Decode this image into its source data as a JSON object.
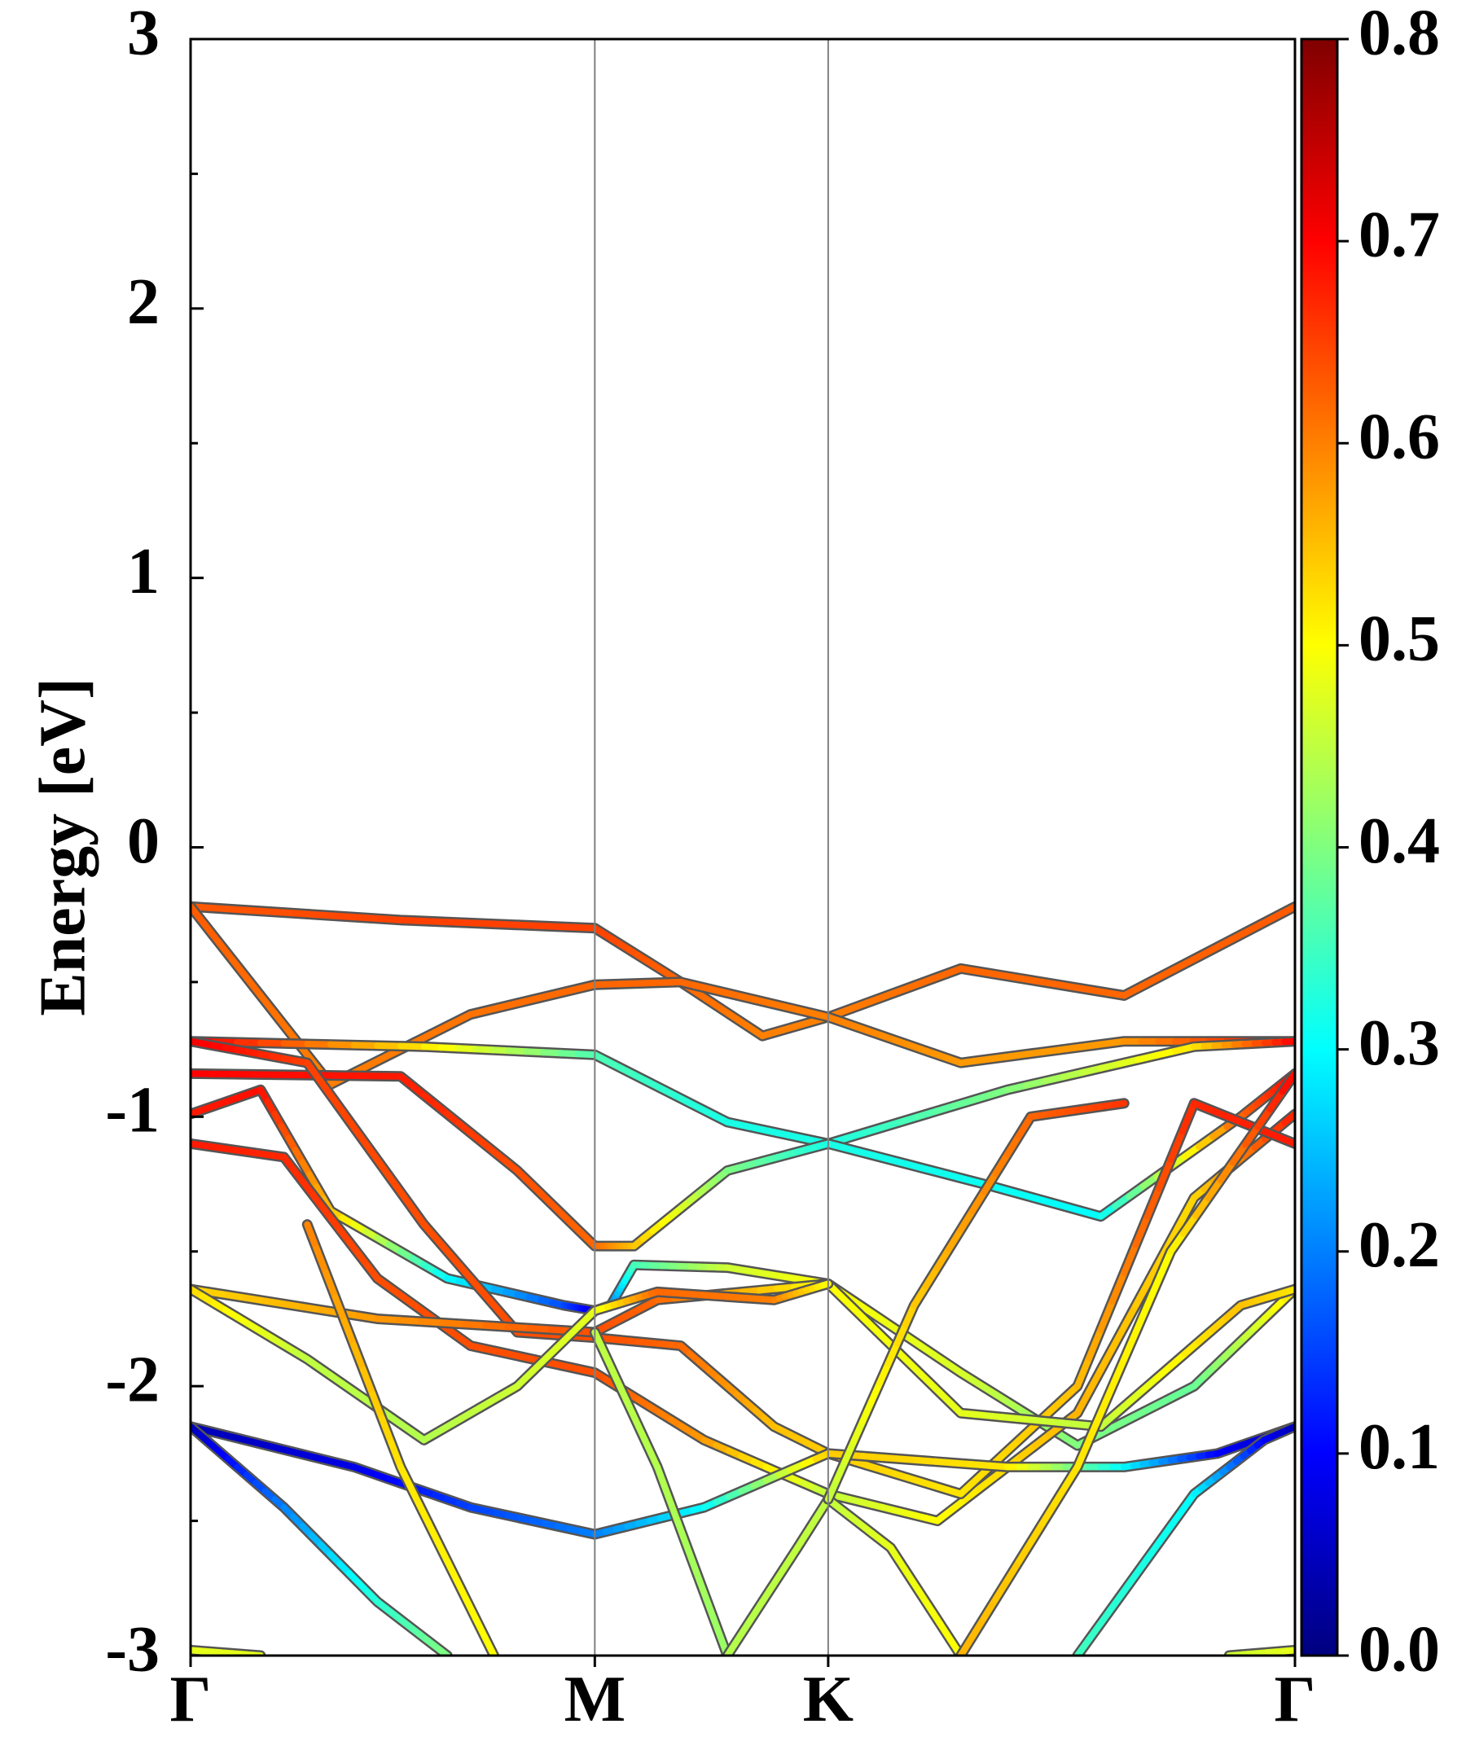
{
  "chart_data": {
    "type": "line",
    "title": "",
    "ylabel": "Energy [eV]",
    "xlabel": "",
    "ylim": [
      -3,
      3
    ],
    "yticks": [
      "3",
      "2",
      "1",
      "0",
      "-1",
      "-2",
      "-3"
    ],
    "ytick_values": [
      3,
      2,
      1,
      0,
      -1,
      -2,
      -3
    ],
    "kpath_labels": [
      "Γ",
      "M",
      "K",
      "Γ"
    ],
    "kpath_positions": [
      0,
      1.732,
      2.732,
      4.732
    ],
    "colorbar": {
      "colormap": "jet",
      "range": [
        0.0,
        0.8
      ],
      "tick_labels": [
        "0.8",
        "0.7",
        "0.6",
        "0.5",
        "0.4",
        "0.3",
        "0.2",
        "0.1",
        "0.0"
      ]
    },
    "grid": false,
    "series": [
      {
        "points": [
          [
            0,
            -0.22,
            0.63
          ],
          [
            0.9,
            -0.27,
            0.65
          ],
          [
            1.732,
            -0.3,
            0.65
          ],
          [
            2.1,
            -0.5,
            0.62
          ],
          [
            2.45,
            -0.7,
            0.6
          ],
          [
            2.732,
            -0.63,
            0.6
          ],
          [
            3.3,
            -0.45,
            0.62
          ],
          [
            4.0,
            -0.55,
            0.62
          ],
          [
            4.732,
            -0.22,
            0.63
          ]
        ]
      },
      {
        "points": [
          [
            0,
            -0.22,
            0.63
          ],
          [
            0.6,
            -0.88,
            0.6
          ],
          [
            1.2,
            -0.62,
            0.61
          ],
          [
            1.732,
            -0.51,
            0.62
          ],
          [
            2.1,
            -0.5,
            0.62
          ],
          [
            2.732,
            -0.63,
            0.6
          ],
          [
            3.3,
            -0.8,
            0.58
          ],
          [
            4.0,
            -0.72,
            0.58
          ],
          [
            4.732,
            -0.72,
            0.7
          ]
        ]
      },
      {
        "points": [
          [
            0,
            -0.72,
            0.71
          ],
          [
            1.0,
            -0.74,
            0.52
          ],
          [
            1.732,
            -0.77,
            0.36
          ],
          [
            2.3,
            -1.02,
            0.32
          ],
          [
            2.732,
            -1.1,
            0.32
          ],
          [
            3.5,
            -0.9,
            0.4
          ],
          [
            4.3,
            -0.74,
            0.52
          ],
          [
            4.732,
            -0.72,
            0.7
          ]
        ]
      },
      {
        "points": [
          [
            0,
            -0.84,
            0.7
          ],
          [
            0.9,
            -0.85,
            0.68
          ],
          [
            1.4,
            -1.2,
            0.64
          ],
          [
            1.732,
            -1.48,
            0.62
          ],
          [
            1.9,
            -1.48,
            0.55
          ],
          [
            2.3,
            -1.2,
            0.4
          ],
          [
            2.732,
            -1.1,
            0.32
          ],
          [
            3.4,
            -1.25,
            0.31
          ],
          [
            3.9,
            -1.37,
            0.3
          ],
          [
            4.5,
            -1.0,
            0.62
          ],
          [
            4.732,
            -0.84,
            0.7
          ]
        ]
      },
      {
        "points": [
          [
            0,
            -0.99,
            0.68
          ],
          [
            0.3,
            -0.9,
            0.69
          ],
          [
            0.6,
            -1.35,
            0.55
          ],
          [
            1.1,
            -1.6,
            0.3
          ],
          [
            1.6,
            -1.7,
            0.16
          ],
          [
            1.732,
            -1.72,
            0.08
          ],
          [
            1.8,
            -1.7,
            0.2
          ],
          [
            1.9,
            -1.55,
            0.35
          ],
          [
            2.3,
            -1.56,
            0.46
          ],
          [
            2.732,
            -1.62,
            0.5
          ],
          [
            3.3,
            -1.95,
            0.47
          ],
          [
            3.8,
            -2.22,
            0.4
          ],
          [
            4.3,
            -2.0,
            0.38
          ],
          [
            4.732,
            -1.64,
            0.52
          ]
        ]
      },
      {
        "points": [
          [
            0,
            -1.1,
            0.68
          ],
          [
            0.4,
            -1.15,
            0.67
          ],
          [
            0.8,
            -1.6,
            0.64
          ],
          [
            1.2,
            -1.85,
            0.64
          ],
          [
            1.732,
            -1.95,
            0.64
          ],
          [
            2.2,
            -2.2,
            0.58
          ],
          [
            2.732,
            -2.4,
            0.45
          ],
          [
            3.2,
            -2.5,
            0.5
          ],
          [
            3.8,
            -2.1,
            0.56
          ],
          [
            4.3,
            -1.3,
            0.53
          ],
          [
            4.732,
            -0.99,
            0.68
          ]
        ]
      },
      {
        "points": [
          [
            0,
            -0.72,
            0.71
          ],
          [
            0.5,
            -0.8,
            0.65
          ],
          [
            1.0,
            -1.4,
            0.64
          ],
          [
            1.4,
            -1.8,
            0.64
          ],
          [
            1.732,
            -1.82,
            0.64
          ],
          [
            2.1,
            -1.85,
            0.62
          ],
          [
            2.5,
            -2.15,
            0.55
          ],
          [
            2.732,
            -2.25,
            0.54
          ],
          [
            3.3,
            -2.4,
            0.52
          ],
          [
            3.8,
            -2.0,
            0.55
          ],
          [
            4.3,
            -0.95,
            0.67
          ],
          [
            4.732,
            -1.1,
            0.68
          ]
        ]
      },
      {
        "points": [
          [
            0,
            -1.64,
            0.53
          ],
          [
            0.8,
            -1.75,
            0.58
          ],
          [
            1.732,
            -1.8,
            0.64
          ],
          [
            2.0,
            -1.68,
            0.62
          ],
          [
            2.732,
            -1.62,
            0.5
          ],
          [
            3.3,
            -2.1,
            0.48
          ],
          [
            3.9,
            -2.15,
            0.45
          ],
          [
            4.5,
            -1.7,
            0.55
          ],
          [
            4.732,
            -1.64,
            0.52
          ]
        ]
      },
      {
        "points": [
          [
            0,
            -1.64,
            0.53
          ],
          [
            0.5,
            -1.9,
            0.45
          ],
          [
            1.0,
            -2.2,
            0.44
          ],
          [
            1.4,
            -2.0,
            0.46
          ],
          [
            1.732,
            -1.72,
            0.48
          ],
          [
            2.0,
            -1.65,
            0.62
          ],
          [
            2.5,
            -1.68,
            0.6
          ],
          [
            2.732,
            -1.62,
            0.5
          ]
        ]
      },
      {
        "points": [
          [
            0,
            -2.15,
            0.04
          ],
          [
            0.7,
            -2.3,
            0.08
          ],
          [
            1.2,
            -2.45,
            0.15
          ],
          [
            1.732,
            -2.55,
            0.2
          ],
          [
            2.2,
            -2.45,
            0.3
          ],
          [
            2.732,
            -2.25,
            0.54
          ],
          [
            3.5,
            -2.3,
            0.52
          ],
          [
            4.0,
            -2.3,
            0.3
          ],
          [
            4.4,
            -2.25,
            0.1
          ],
          [
            4.732,
            -2.15,
            0.04
          ]
        ]
      },
      {
        "points": [
          [
            0,
            -2.15,
            0.04
          ],
          [
            0.4,
            -2.45,
            0.2
          ],
          [
            0.8,
            -2.8,
            0.33
          ],
          [
            1.1,
            -3.0,
            0.4
          ]
        ]
      },
      {
        "points": [
          [
            0.5,
            -1.4,
            0.6
          ],
          [
            0.9,
            -2.3,
            0.52
          ],
          [
            1.3,
            -3.0,
            0.5
          ]
        ]
      },
      {
        "points": [
          [
            1.732,
            -1.8,
            0.45
          ],
          [
            2.0,
            -2.3,
            0.44
          ],
          [
            2.3,
            -3.0,
            0.42
          ]
        ]
      },
      {
        "points": [
          [
            2.3,
            -3.0,
            0.44
          ],
          [
            2.6,
            -2.6,
            0.45
          ],
          [
            2.732,
            -2.42,
            0.45
          ],
          [
            3.0,
            -2.6,
            0.48
          ],
          [
            3.3,
            -3.0,
            0.5
          ]
        ]
      },
      {
        "points": [
          [
            2.732,
            -2.42,
            0.45
          ],
          [
            3.1,
            -1.7,
            0.54
          ],
          [
            3.6,
            -1.0,
            0.62
          ],
          [
            4.0,
            -0.95,
            0.66
          ]
        ]
      },
      {
        "points": [
          [
            3.3,
            -3.0,
            0.56
          ],
          [
            3.8,
            -2.3,
            0.52
          ],
          [
            4.2,
            -1.5,
            0.5
          ],
          [
            4.732,
            -0.84,
            0.7
          ]
        ]
      },
      {
        "points": [
          [
            3.8,
            -3.0,
            0.35
          ],
          [
            4.3,
            -2.4,
            0.3
          ],
          [
            4.6,
            -2.2,
            0.1
          ],
          [
            4.732,
            -2.15,
            0.04
          ]
        ]
      },
      {
        "points": [
          [
            0,
            -2.98,
            0.48
          ],
          [
            0.3,
            -3.0,
            0.48
          ]
        ]
      },
      {
        "points": [
          [
            4.45,
            -3.0,
            0.46
          ],
          [
            4.732,
            -2.98,
            0.48
          ]
        ]
      }
    ]
  }
}
